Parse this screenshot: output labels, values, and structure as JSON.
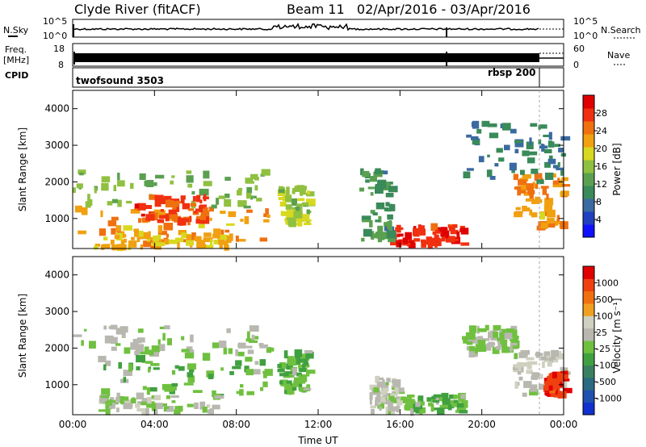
{
  "header": {
    "title_left": "Clyde River (fitACF)",
    "title_right": "Beam 11   02/Apr/2016 - 03/Apr/2016"
  },
  "panels": {
    "nsky": {
      "label": "N.Sky",
      "ticks": [
        "10^5",
        "10^0"
      ],
      "right_label": "N.Search",
      "right_ticks": [
        "10^5",
        "10^0"
      ]
    },
    "freq": {
      "label_line1": "Freq.",
      "label_line2": "[MHz]",
      "ticks": [
        "18",
        "8"
      ],
      "right_label": "Nave",
      "right_ticks": [
        "60",
        "0"
      ]
    },
    "cpid": {
      "label": "CPID",
      "segments": [
        "twofsound 3503",
        "rbsp 200"
      ]
    }
  },
  "colors": {
    "power_scale": [
      "#1010ff",
      "#2040c0",
      "#3a6aa0",
      "#3a8a5a",
      "#5aa050",
      "#90c040",
      "#d8d820",
      "#f0a010",
      "#f07010",
      "#f03010",
      "#e00000"
    ],
    "velocity_scale": [
      "#1030d0",
      "#2050b0",
      "#2a6a80",
      "#3a8060",
      "#40a040",
      "#70c040",
      "#b8b8b0",
      "#d0d0c0",
      "#f0a020",
      "#f07010",
      "#f04010",
      "#e00000"
    ]
  },
  "colorbars": {
    "power": {
      "label": "Power [dB]",
      "ticks": [
        "28",
        "24",
        "20",
        "16",
        "12",
        "8",
        "4"
      ]
    },
    "velocity": {
      "label": "Velocity [m s⁻¹]",
      "ticks": [
        "1000",
        "500",
        "100",
        "25",
        "-25",
        "-100",
        "-500",
        "-1000"
      ]
    }
  },
  "chart_data": [
    {
      "type": "heatmap",
      "name": "power-rti",
      "xlabel": "",
      "ylabel": "Slant Range [km]",
      "xlim": [
        "00:00",
        "24:00"
      ],
      "ylim": [
        180,
        4500
      ],
      "x_ticks": [
        "00:00",
        "04:00",
        "08:00",
        "12:00",
        "16:00",
        "20:00",
        "00:00"
      ],
      "y_ticks": [
        "1000",
        "2000",
        "3000",
        "4000"
      ],
      "z_label": "Power [dB]",
      "z_range": [
        0,
        30
      ],
      "regions": [
        {
          "t": [
            0.0,
            9.5
          ],
          "r": [
            300,
            1300
          ],
          "value": 22
        },
        {
          "t": [
            0.0,
            9.5
          ],
          "r": [
            1300,
            2300
          ],
          "value": 14
        },
        {
          "t": [
            3.0,
            6.5
          ],
          "r": [
            900,
            1600
          ],
          "value": 26
        },
        {
          "t": [
            1.0,
            7.5
          ],
          "r": [
            200,
            600
          ],
          "value": 20
        },
        {
          "t": [
            10.0,
            11.5
          ],
          "r": [
            800,
            1900
          ],
          "value": 16
        },
        {
          "t": [
            15.5,
            19.0
          ],
          "r": [
            250,
            800
          ],
          "value": 28
        },
        {
          "t": [
            14.0,
            15.5
          ],
          "r": [
            400,
            2300
          ],
          "value": 10
        },
        {
          "t": [
            21.5,
            24.0
          ],
          "r": [
            700,
            2200
          ],
          "value": 22
        },
        {
          "t": [
            19.0,
            24.0
          ],
          "r": [
            2000,
            3600
          ],
          "value": 8
        }
      ]
    },
    {
      "type": "heatmap",
      "name": "velocity-rti",
      "xlabel": "Time UT",
      "ylabel": "Slant Range [km]",
      "xlim": [
        "00:00",
        "24:00"
      ],
      "ylim": [
        180,
        4500
      ],
      "x_ticks": [
        "00:00",
        "04:00",
        "08:00",
        "12:00",
        "16:00",
        "20:00",
        "00:00"
      ],
      "y_ticks": [
        "1000",
        "2000",
        "3000",
        "4000"
      ],
      "z_label": "Velocity [m s⁻¹]",
      "z_range": [
        -1000,
        1000
      ],
      "regions": [
        {
          "t": [
            0.0,
            9.5
          ],
          "r": [
            1800,
            2600
          ],
          "value": 0
        },
        {
          "t": [
            1.0,
            9.5
          ],
          "r": [
            700,
            1800
          ],
          "value": -150
        },
        {
          "t": [
            1.0,
            7.0
          ],
          "r": [
            250,
            700
          ],
          "value": 60
        },
        {
          "t": [
            10.0,
            11.5
          ],
          "r": [
            800,
            1900
          ],
          "value": -150
        },
        {
          "t": [
            14.5,
            16.0
          ],
          "r": [
            250,
            1200
          ],
          "value": 120
        },
        {
          "t": [
            16.0,
            19.0
          ],
          "r": [
            250,
            700
          ],
          "value": -120
        },
        {
          "t": [
            19.0,
            21.5
          ],
          "r": [
            1800,
            2600
          ],
          "value": 0
        },
        {
          "t": [
            21.5,
            24.0
          ],
          "r": [
            700,
            1900
          ],
          "value": 150
        },
        {
          "t": [
            23.0,
            24.0
          ],
          "r": [
            700,
            1300
          ],
          "value": 900
        }
      ]
    }
  ]
}
